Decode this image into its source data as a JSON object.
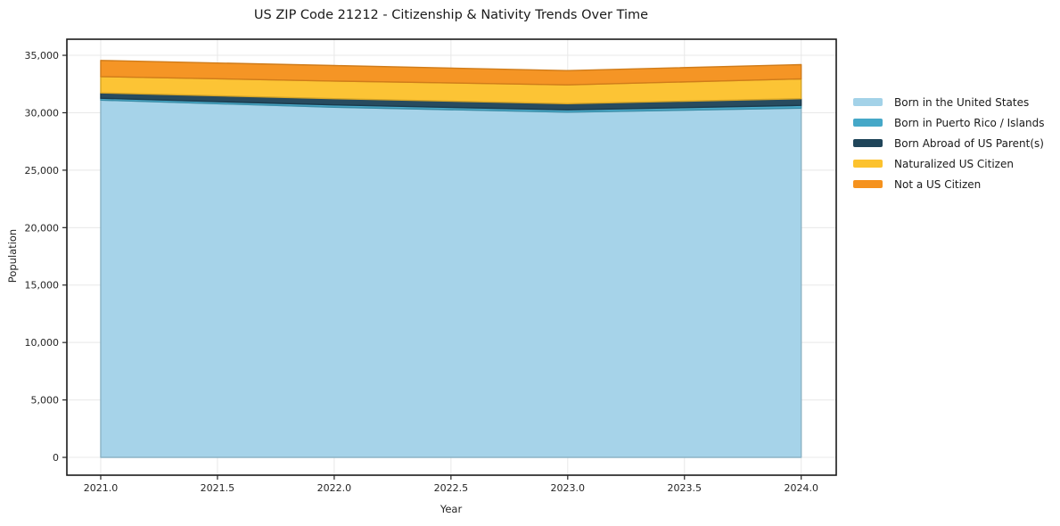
{
  "chart_data": {
    "type": "area",
    "stacked": true,
    "title": "US ZIP Code 21212 - Citizenship & Nativity Trends Over Time",
    "xlabel": "Year",
    "ylabel": "Population",
    "x": [
      2021,
      2022,
      2023,
      2024
    ],
    "series": [
      {
        "name": "Born in the United States",
        "color": "#A3D2E8",
        "values": [
          31100,
          30480,
          30050,
          30400
        ]
      },
      {
        "name": "Born in Puerto Rico / Islands",
        "color": "#45A8C8",
        "values": [
          160,
          200,
          200,
          240
        ]
      },
      {
        "name": "Born Abroad of US Parent(s)",
        "color": "#20455A",
        "values": [
          470,
          540,
          540,
          580
        ]
      },
      {
        "name": "Naturalized US Citizen",
        "color": "#FCC22E",
        "values": [
          1420,
          1540,
          1635,
          1730
        ]
      },
      {
        "name": "Not a US Citizen",
        "color": "#F5921E",
        "values": [
          1400,
          1350,
          1245,
          1240
        ]
      }
    ],
    "totals": [
      34550,
      34110,
      33670,
      34190
    ],
    "x_ticks": {
      "values": [
        2021,
        2021.5,
        2022,
        2022.5,
        2023,
        2023.5,
        2024
      ],
      "labels": [
        "2021.0",
        "2021.5",
        "2022.0",
        "2022.5",
        "2023.0",
        "2023.5",
        "2024.0"
      ]
    },
    "y_ticks": {
      "values": [
        0,
        5000,
        10000,
        15000,
        20000,
        25000,
        30000,
        35000
      ],
      "labels": [
        "0",
        "5,000",
        "10,000",
        "15,000",
        "20,000",
        "25,000",
        "30,000",
        "35,000"
      ]
    },
    "xlim": [
      2020.855,
      2024.15
    ],
    "ylim": [
      -1550,
      36400
    ],
    "grid": true,
    "legend_position": "right",
    "colors": {
      "grid": "#e8e8e8",
      "spine": "#1a1a1a",
      "tick": "#262626",
      "tick_label": "#262626",
      "background": "#ffffff"
    }
  }
}
